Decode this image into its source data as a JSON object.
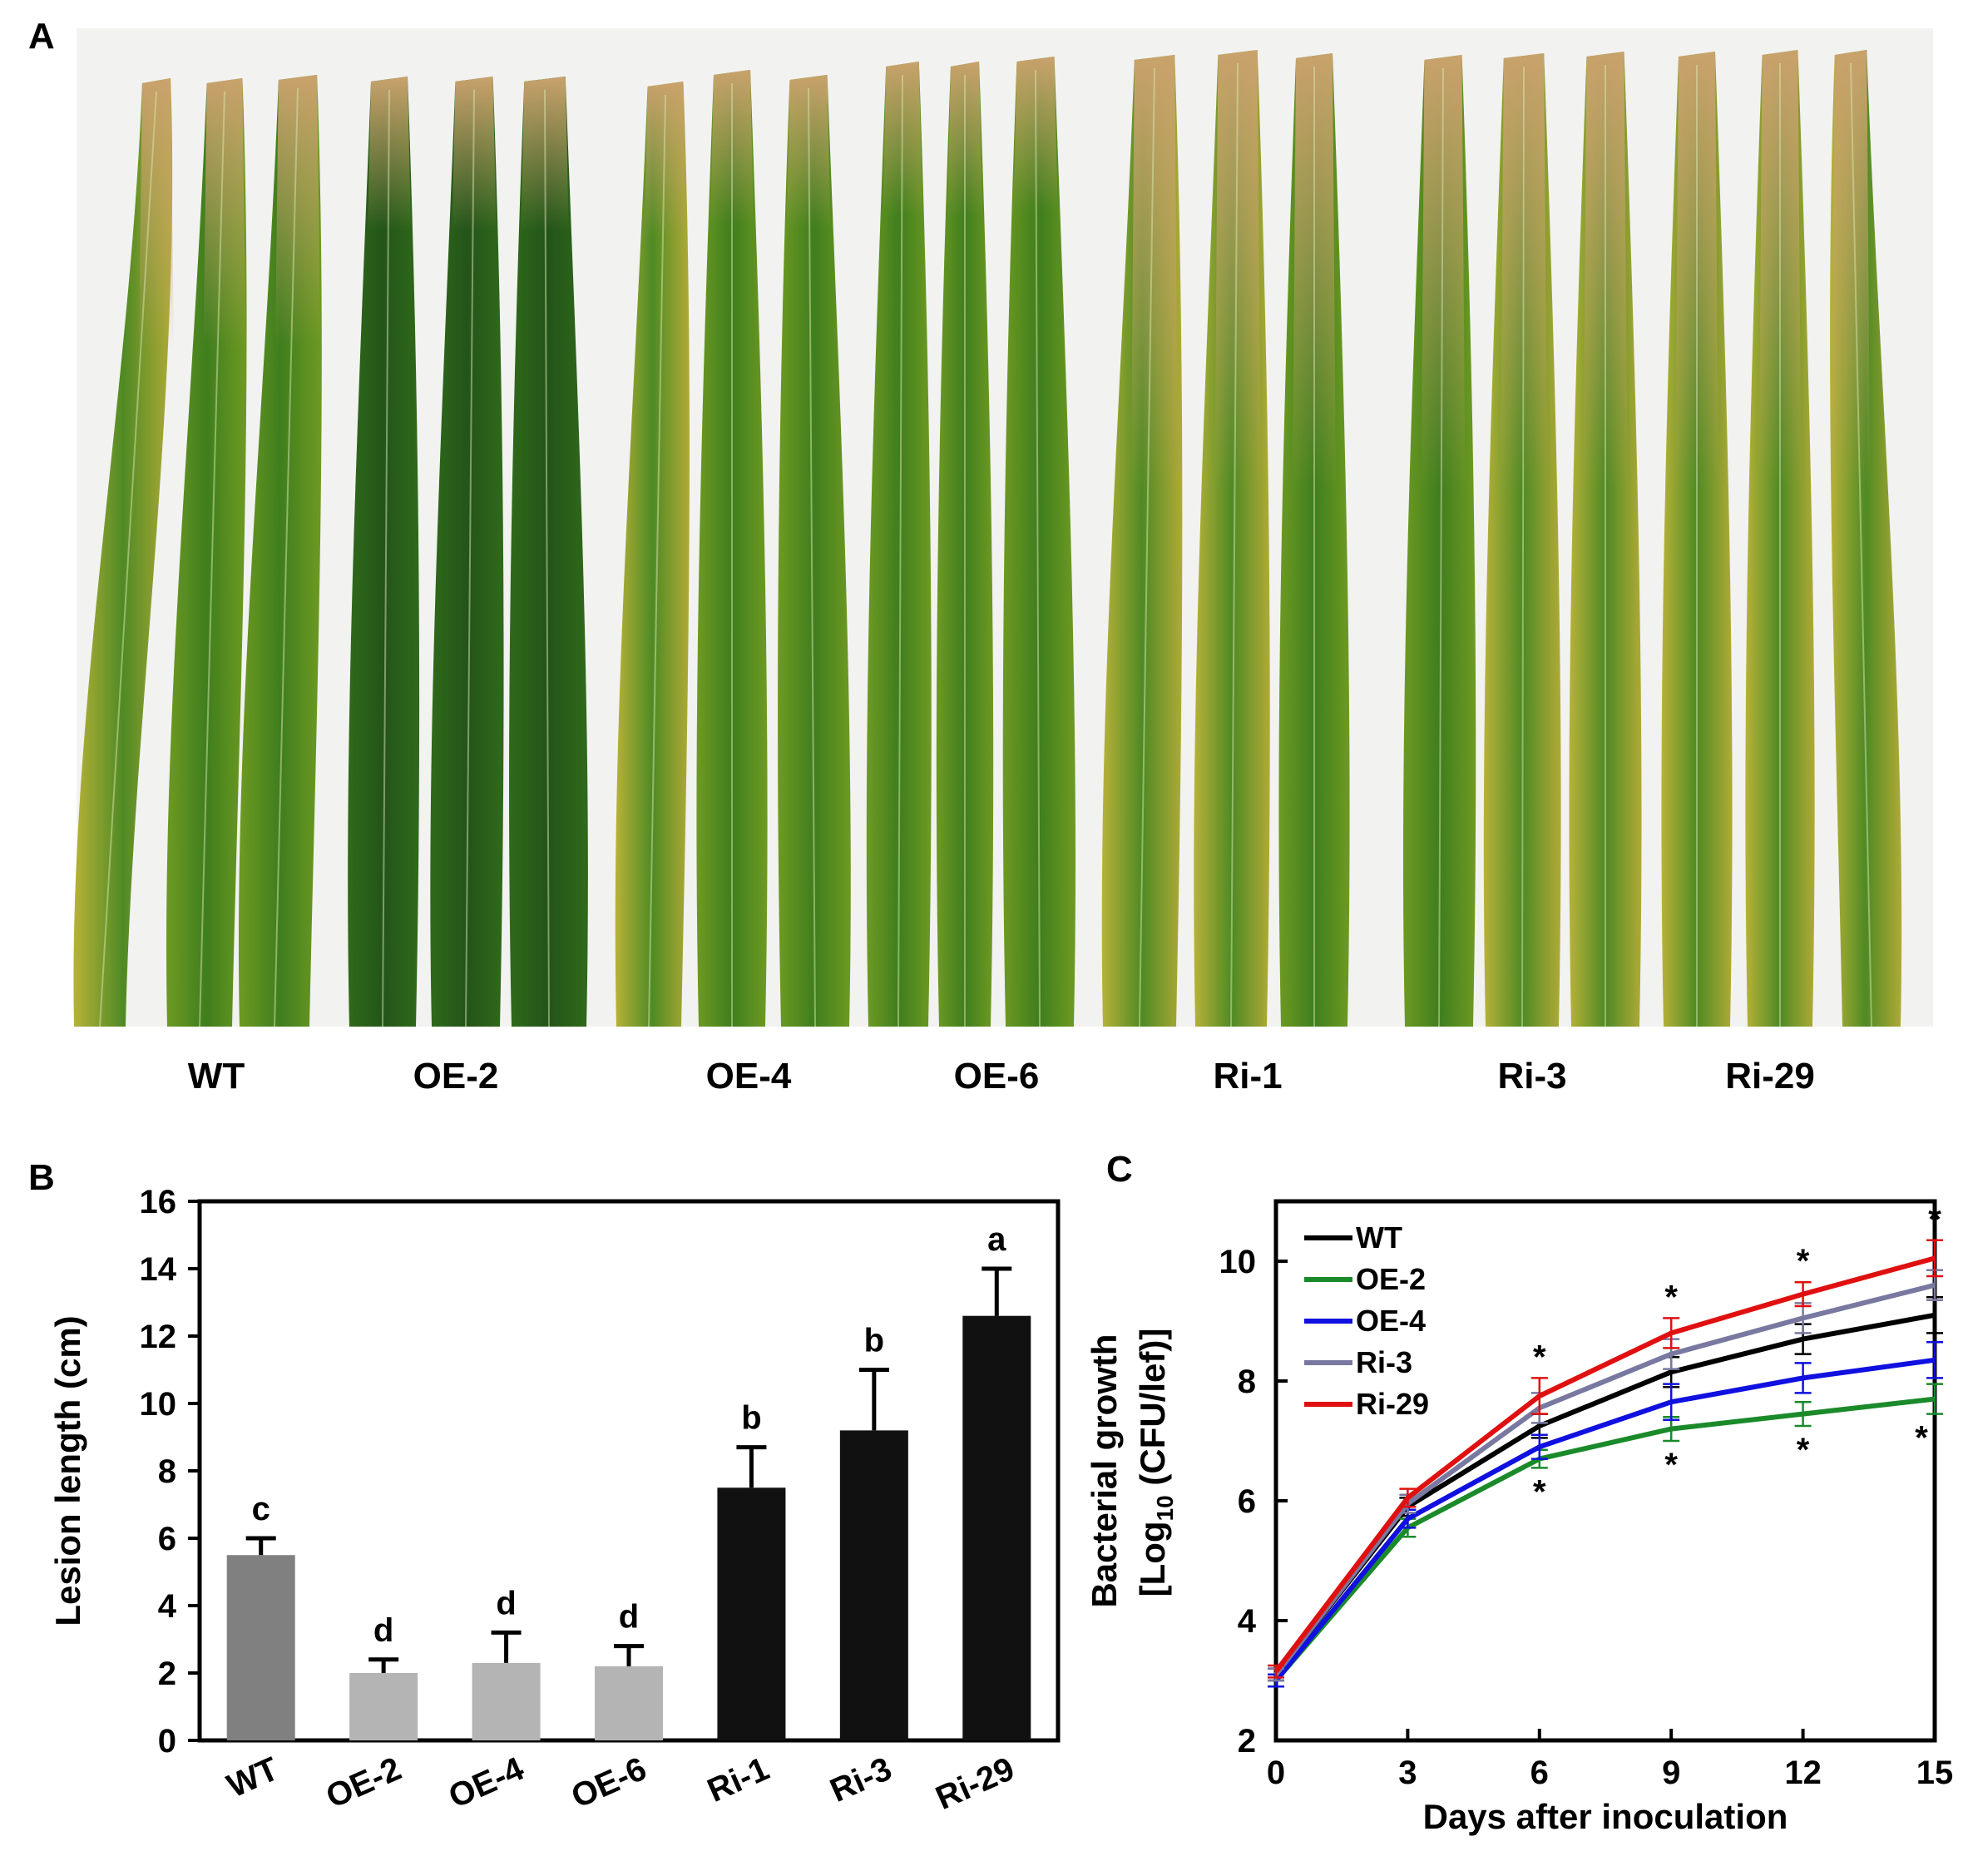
{
  "panel_a": {
    "letter": "A",
    "labels": [
      "WT",
      "OE-2",
      "OE-4",
      "OE-6",
      "Ri-1",
      "Ri-3",
      "Ri-29"
    ]
  },
  "panel_b": {
    "letter": "B"
  },
  "panel_c": {
    "letter": "C"
  },
  "colors": {
    "wt_bar": "#808080",
    "oe_bar": "#b4b4b4",
    "ri_bar": "#111111",
    "wt_line": "#000000",
    "oe2_line": "#1a8a2a",
    "oe4_line": "#1010e0",
    "ri3_line": "#7878a0",
    "ri29_line": "#e01010"
  },
  "chart_data": [
    {
      "type": "bar",
      "panel": "B",
      "categories": [
        "WT",
        "OE-2",
        "OE-4",
        "OE-6",
        "Ri-1",
        "Ri-3",
        "Ri-29"
      ],
      "values": [
        5.5,
        2.0,
        2.3,
        2.2,
        7.5,
        9.2,
        12.6
      ],
      "errors": [
        0.5,
        0.4,
        0.9,
        0.6,
        1.2,
        1.8,
        1.4
      ],
      "significance": [
        "c",
        "d",
        "d",
        "d",
        "b",
        "b",
        "a"
      ],
      "ylabel": "Lesion length (cm)",
      "ylim": [
        0,
        16
      ],
      "yticks": [
        0,
        2,
        4,
        6,
        8,
        10,
        12,
        14,
        16
      ]
    },
    {
      "type": "line",
      "panel": "C",
      "x": [
        0,
        3,
        6,
        9,
        12,
        15
      ],
      "xlabel": "Days after inoculation",
      "ylabel_line1": "Bacterial growth",
      "ylabel_line2_prefix": "[Log",
      "ylabel_line2_sub": "10",
      "ylabel_line2_suffix": " (CFU/lef)]",
      "xlim": [
        0,
        15
      ],
      "ylim": [
        2,
        11
      ],
      "xticks": [
        0,
        3,
        6,
        9,
        12,
        15
      ],
      "yticks": [
        2,
        4,
        6,
        8,
        10
      ],
      "series": [
        {
          "name": "WT",
          "values": [
            3.1,
            5.9,
            7.25,
            8.15,
            8.7,
            9.1
          ],
          "errors": [
            0.1,
            0.15,
            0.2,
            0.25,
            0.25,
            0.3
          ]
        },
        {
          "name": "OE-2",
          "values": [
            3.0,
            5.55,
            6.7,
            7.2,
            7.45,
            7.7
          ],
          "errors": [
            0.1,
            0.15,
            0.15,
            0.2,
            0.2,
            0.25
          ]
        },
        {
          "name": "OE-4",
          "values": [
            3.0,
            5.7,
            6.9,
            7.65,
            8.05,
            8.35
          ],
          "errors": [
            0.1,
            0.15,
            0.2,
            0.3,
            0.25,
            0.3
          ]
        },
        {
          "name": "Ri-3",
          "values": [
            3.1,
            5.95,
            7.55,
            8.45,
            9.05,
            9.6
          ],
          "errors": [
            0.1,
            0.15,
            0.25,
            0.25,
            0.25,
            0.25
          ]
        },
        {
          "name": "Ri-29",
          "values": [
            3.15,
            6.05,
            7.75,
            8.8,
            9.45,
            10.05
          ],
          "errors": [
            0.1,
            0.15,
            0.3,
            0.25,
            0.2,
            0.3
          ]
        }
      ],
      "star_marker": "*",
      "stars_above_x": [
        6,
        9,
        12,
        15
      ],
      "stars_below_x": [
        6,
        9,
        12,
        15
      ]
    }
  ]
}
